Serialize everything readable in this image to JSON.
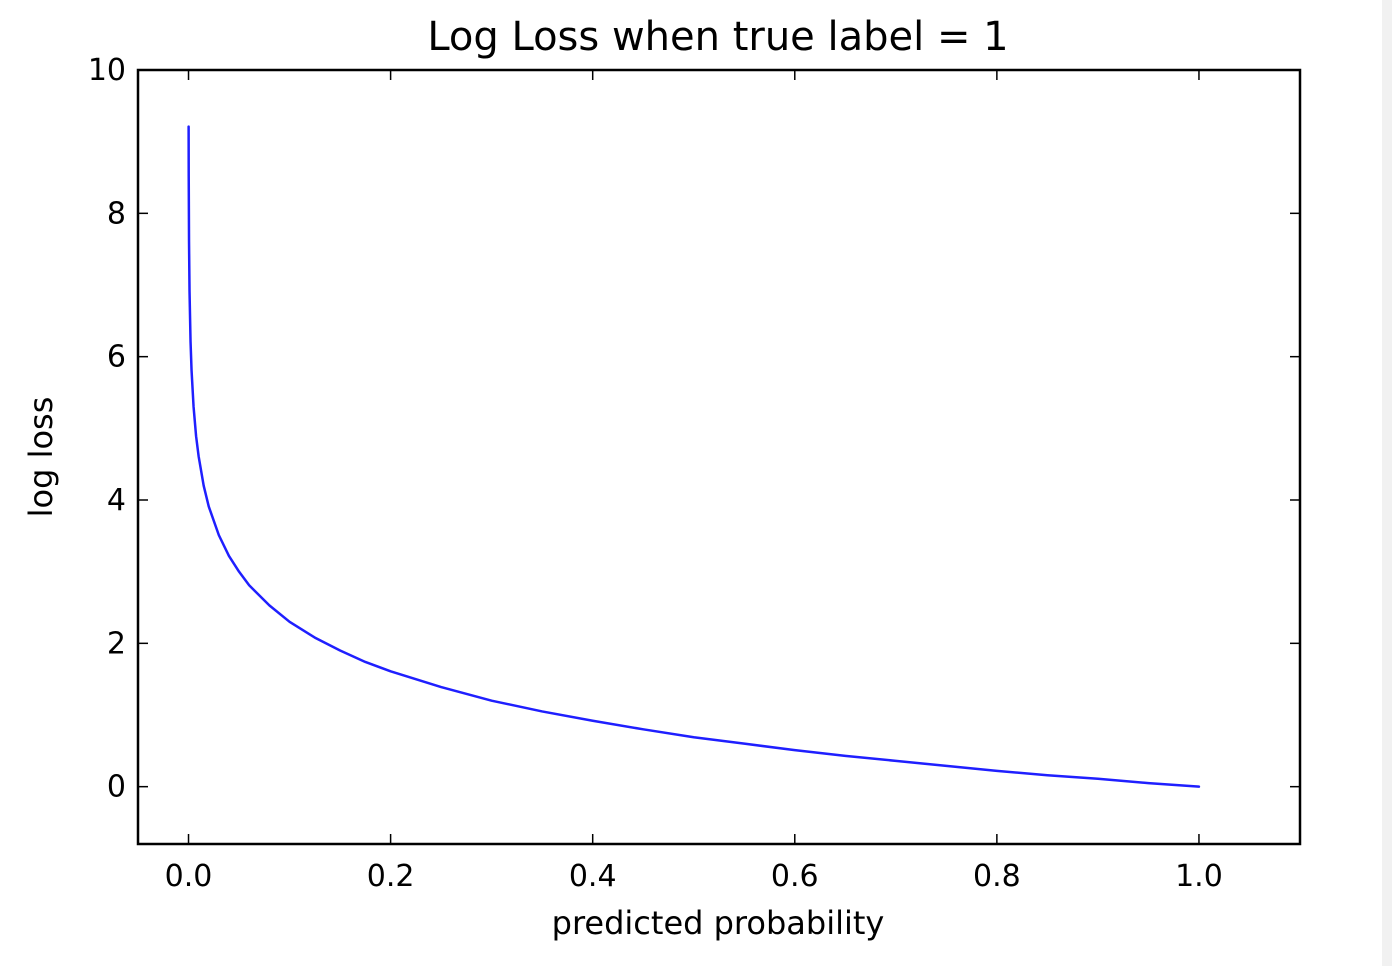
{
  "chart_data": {
    "type": "line",
    "title": "Log Loss when true label = 1",
    "xlabel": "predicted probability",
    "ylabel": "log loss",
    "xlim": [
      -0.05,
      1.1
    ],
    "ylim": [
      -0.8,
      10
    ],
    "xticks": [
      0.0,
      0.2,
      0.4,
      0.6,
      0.8,
      1.0
    ],
    "xtick_labels": [
      "0.0",
      "0.2",
      "0.4",
      "0.6",
      "0.8",
      "1.0"
    ],
    "yticks": [
      0,
      2,
      4,
      6,
      8,
      10
    ],
    "ytick_labels": [
      "0",
      "2",
      "4",
      "6",
      "8",
      "10"
    ],
    "grid": false,
    "series": [
      {
        "color": "#1f1fff",
        "x": [
          0.0001,
          0.0002,
          0.0005,
          0.001,
          0.002,
          0.003,
          0.005,
          0.0075,
          0.01,
          0.015,
          0.02,
          0.03,
          0.04,
          0.05,
          0.06,
          0.08,
          0.1,
          0.125,
          0.15,
          0.175,
          0.2,
          0.25,
          0.3,
          0.35,
          0.4,
          0.45,
          0.5,
          0.55,
          0.6,
          0.65,
          0.7,
          0.75,
          0.8,
          0.85,
          0.9,
          0.95,
          1.0
        ],
        "y": [
          9.21,
          8.52,
          7.6,
          6.91,
          6.21,
          5.81,
          5.3,
          4.89,
          4.61,
          4.2,
          3.91,
          3.51,
          3.22,
          3.0,
          2.81,
          2.53,
          2.3,
          2.08,
          1.9,
          1.74,
          1.61,
          1.39,
          1.2,
          1.05,
          0.92,
          0.8,
          0.69,
          0.6,
          0.51,
          0.43,
          0.36,
          0.29,
          0.22,
          0.16,
          0.11,
          0.05,
          0.0
        ]
      }
    ]
  }
}
